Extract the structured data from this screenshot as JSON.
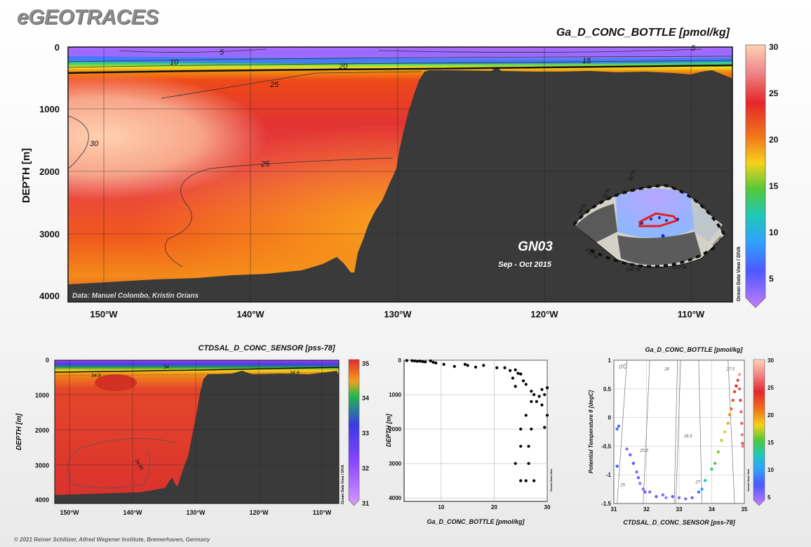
{
  "brand": "eGEOTRACES",
  "credit": "© 2021 Reiner Schlitzer, Alfred Wegener Institute, Bremerhaven, Germany",
  "odv_label": "Ocean Data View / DIVA",
  "odv_label_short": "Ocean Data View",
  "main_section": {
    "title": "Ga_D_CONC_BOTTLE [pmol/kg]",
    "ylabel": "DEPTH [m]",
    "y_ticks": [
      "0",
      "1000",
      "2000",
      "3000",
      "4000"
    ],
    "x_ticks": [
      "150°W",
      "140°W",
      "130°W",
      "120°W",
      "110°W"
    ],
    "data_credit": "Data: Manuel Colombo, Kristin Orians",
    "contour_labels": [
      "5",
      "10",
      "20",
      "15",
      "5",
      "25",
      "30",
      "25"
    ],
    "cruise": "GN03",
    "dates": "Sep - Oct 2015",
    "colorbar_ticks": [
      "30",
      "25",
      "20",
      "15",
      "10",
      "5"
    ],
    "map_labels": [
      "80°N",
      "70°N",
      "60°N",
      "150°W",
      "120°W",
      "90°W",
      "150°W"
    ]
  },
  "sal_section": {
    "title": "CTDSAL_D_CONC_SENSOR [pss-78]",
    "ylabel": "DEPTH [m]",
    "y_ticks": [
      "0",
      "1000",
      "2000",
      "3000",
      "4000"
    ],
    "x_ticks": [
      "150°W",
      "140°W",
      "130°W",
      "120°W",
      "110°W"
    ],
    "contour_labels": [
      "34",
      "34.9",
      "34.9",
      "34.95"
    ],
    "colorbar_ticks": [
      "35",
      "34",
      "33",
      "32",
      "31"
    ]
  },
  "chart_data": [
    {
      "type": "heatmap",
      "title": "Ga_D_CONC_BOTTLE [pmol/kg]",
      "xlabel": "",
      "ylabel": "DEPTH [m]",
      "xlim": [
        "153°W",
        "107°W"
      ],
      "ylim": [
        4100,
        0
      ],
      "colorbar_range": [
        3,
        30
      ],
      "contour_levels": [
        5,
        10,
        15,
        20,
        25,
        30
      ]
    },
    {
      "type": "heatmap",
      "title": "CTDSAL_D_CONC_SENSOR [pss-78]",
      "xlabel": "",
      "ylabel": "DEPTH [m]",
      "ylim": [
        4100,
        0
      ],
      "colorbar_range": [
        31,
        35
      ],
      "contour_levels": [
        34,
        34.9,
        34.95
      ]
    },
    {
      "type": "scatter",
      "title": "",
      "xlabel": "Ga_D_CONC_BOTTLE [pmol/kg]",
      "ylabel": "DEPTH [m]",
      "xlim": [
        3,
        30
      ],
      "ylim": [
        4100,
        0
      ],
      "x_ticks": [
        "10",
        "20",
        "30"
      ],
      "y_ticks": [
        "0",
        "1000",
        "2000",
        "3000",
        "4000"
      ],
      "points": [
        [
          3.5,
          10
        ],
        [
          4.5,
          15
        ],
        [
          5,
          20
        ],
        [
          6,
          25
        ],
        [
          5.5,
          30
        ],
        [
          6.5,
          40
        ],
        [
          7,
          50
        ],
        [
          8,
          20
        ],
        [
          8.5,
          60
        ],
        [
          9,
          80
        ],
        [
          10.5,
          120
        ],
        [
          12.5,
          180
        ],
        [
          14.5,
          120
        ],
        [
          15,
          150
        ],
        [
          16.5,
          200
        ],
        [
          18,
          150
        ],
        [
          20.5,
          220
        ],
        [
          22,
          220
        ],
        [
          23,
          300
        ],
        [
          24,
          280
        ],
        [
          24.5,
          380
        ],
        [
          25,
          400
        ],
        [
          23.5,
          520
        ],
        [
          25.5,
          600
        ],
        [
          24,
          760
        ],
        [
          26,
          700
        ],
        [
          27,
          900
        ],
        [
          27.5,
          1000
        ],
        [
          29,
          850
        ],
        [
          30,
          800
        ],
        [
          28.5,
          1050
        ],
        [
          29.5,
          1000
        ],
        [
          27,
          1200
        ],
        [
          28,
          1200
        ],
        [
          29,
          1300
        ],
        [
          30,
          1600
        ],
        [
          26,
          1600
        ],
        [
          25,
          2000
        ],
        [
          27,
          2000
        ],
        [
          29.5,
          1950
        ],
        [
          25,
          2500
        ],
        [
          26.5,
          2500
        ],
        [
          24,
          3000
        ],
        [
          26.5,
          3000
        ],
        [
          25,
          3500
        ],
        [
          26,
          3500
        ],
        [
          27.5,
          3500
        ]
      ]
    },
    {
      "type": "scatter",
      "title": "Ga_D_CONC_BOTTLE [pmol/kg]",
      "xlabel": "CTDSAL_D_CONC_SENSOR [pss-78]",
      "ylabel": "Potential Temperature θ [degC]",
      "xlim": [
        31,
        35
      ],
      "ylim": [
        -1.5,
        1
      ],
      "x_ticks": [
        "31",
        "32",
        "33",
        "34",
        "35"
      ],
      "y_ticks": [
        "1",
        "0.5",
        "0",
        "-0.5",
        "-1",
        "-1.5"
      ],
      "colorbar_range": [
        3,
        30
      ],
      "colorbar_ticks": [
        "30",
        "25",
        "20",
        "15",
        "10",
        "5"
      ],
      "isopycnal_labels": [
        "σ0",
        "25",
        "25.5",
        "26",
        "26.5",
        "27",
        "27.5"
      ],
      "points": [
        [
          31.1,
          -0.2,
          8
        ],
        [
          31.15,
          -0.15,
          6
        ],
        [
          31.1,
          -0.85,
          7
        ],
        [
          31.4,
          -0.55,
          5
        ],
        [
          31.5,
          -0.65,
          6
        ],
        [
          31.6,
          -0.8,
          7
        ],
        [
          31.7,
          -0.95,
          5
        ],
        [
          31.75,
          -1.05,
          6
        ],
        [
          31.8,
          -1.15,
          4
        ],
        [
          31.9,
          -1.25,
          5
        ],
        [
          31.95,
          -1.3,
          6
        ],
        [
          32.1,
          -1.3,
          5
        ],
        [
          32.3,
          -1.38,
          6
        ],
        [
          32.5,
          -1.35,
          5
        ],
        [
          32.6,
          -1.4,
          4
        ],
        [
          32.8,
          -1.38,
          6
        ],
        [
          33.0,
          -1.4,
          5
        ],
        [
          33.2,
          -1.42,
          5
        ],
        [
          33.4,
          -1.4,
          6
        ],
        [
          33.6,
          -1.3,
          8
        ],
        [
          33.7,
          -1.25,
          10
        ],
        [
          33.8,
          -1.1,
          12
        ],
        [
          34.0,
          -0.9,
          14
        ],
        [
          34.1,
          -0.8,
          15
        ],
        [
          34.2,
          -0.6,
          16
        ],
        [
          34.3,
          -0.4,
          17
        ],
        [
          34.4,
          -0.25,
          18
        ],
        [
          34.5,
          -0.1,
          19
        ],
        [
          34.55,
          0.05,
          20
        ],
        [
          34.6,
          0.15,
          21
        ],
        [
          34.65,
          0.3,
          22
        ],
        [
          34.7,
          0.45,
          23
        ],
        [
          34.75,
          0.55,
          24
        ],
        [
          34.8,
          0.65,
          25
        ],
        [
          34.85,
          0.75,
          28
        ],
        [
          34.85,
          0.5,
          26
        ],
        [
          34.88,
          0.3,
          25
        ],
        [
          34.9,
          0.1,
          26
        ],
        [
          34.92,
          -0.1,
          26
        ],
        [
          34.93,
          -0.3,
          27
        ],
        [
          34.94,
          -0.45,
          26
        ],
        [
          34.95,
          -0.5,
          27
        ]
      ]
    }
  ]
}
